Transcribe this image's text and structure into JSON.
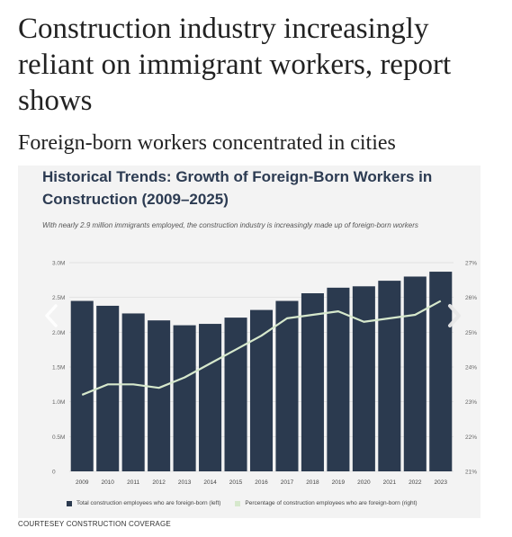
{
  "article": {
    "headline": "Construction industry increasingly reliant on immigrant workers, report shows",
    "subheadline": "Foreign-born workers concentrated in cities",
    "credit": "COURTESEY CONSTRUCTION COVERAGE"
  },
  "carousel": {
    "prev_icon": "chevron-left-icon",
    "next_icon": "chevron-right-icon"
  },
  "chart_data": {
    "type": "bar",
    "title": "Historical Trends: Growth of Foreign-Born Workers in Construction (2009–2025)",
    "subtitle": "With nearly 2.9 million immigrants employed, the construction industry is increasingly made up of foreign-born workers",
    "categories": [
      "2009",
      "2010",
      "2011",
      "2012",
      "2013",
      "2014",
      "2015",
      "2016",
      "2017",
      "2018",
      "2019",
      "2020",
      "2021",
      "2022",
      "2023"
    ],
    "series": [
      {
        "name": "Total construction employees who are foreign-born (left)",
        "type": "bar",
        "axis": "left",
        "color": "#2b3a4f",
        "values": [
          2.45,
          2.38,
          2.27,
          2.17,
          2.1,
          2.12,
          2.21,
          2.32,
          2.45,
          2.56,
          2.64,
          2.66,
          2.74,
          2.8,
          2.87
        ]
      },
      {
        "name": "Percentage of construction employees who are foreign-born (right)",
        "type": "line",
        "axis": "right",
        "color": "#d6e8cc",
        "values": [
          23.2,
          23.5,
          23.5,
          23.4,
          23.7,
          24.1,
          24.5,
          24.9,
          25.4,
          25.5,
          25.6,
          25.3,
          25.4,
          25.5,
          25.9
        ]
      }
    ],
    "y_left": {
      "ylim": [
        0,
        3.0
      ],
      "ticks": [
        0,
        0.5,
        1.0,
        1.5,
        2.0,
        2.5,
        3.0
      ],
      "tick_labels": [
        "0",
        "0.5M",
        "1.0M",
        "1.5M",
        "2.0M",
        "2.5M",
        "3.0M"
      ]
    },
    "y_right": {
      "ylim": [
        21,
        27
      ],
      "ticks": [
        21,
        22,
        23,
        24,
        25,
        26,
        27
      ],
      "tick_labels": [
        "21%",
        "22%",
        "23%",
        "24%",
        "25%",
        "26%",
        "27%"
      ]
    },
    "grid": true,
    "legend_position": "bottom",
    "xlabel": "",
    "ylabel": ""
  }
}
